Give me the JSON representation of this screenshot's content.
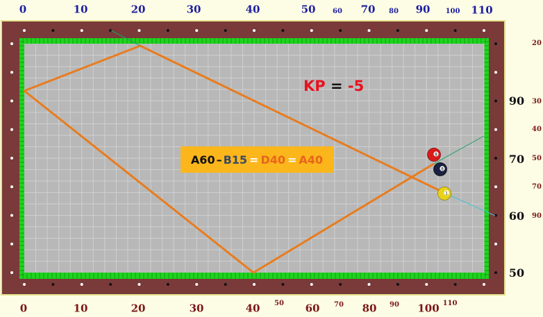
{
  "top_scale": [
    {
      "text": "0",
      "size": "big"
    },
    {
      "text": "10",
      "size": "big"
    },
    {
      "text": "20",
      "size": "big"
    },
    {
      "text": "30",
      "size": "big"
    },
    {
      "text": "40",
      "size": "big"
    },
    {
      "text": "50",
      "size": "big"
    },
    {
      "text": "60",
      "size": "small"
    },
    {
      "text": "70",
      "size": "big"
    },
    {
      "text": "80",
      "size": "small"
    },
    {
      "text": "90",
      "size": "big"
    },
    {
      "text": "100",
      "size": "small"
    },
    {
      "text": "110",
      "size": "big"
    }
  ],
  "bottom_scale": [
    {
      "text": "0",
      "size": "big"
    },
    {
      "text": "10",
      "size": "big"
    },
    {
      "text": "20",
      "size": "big"
    },
    {
      "text": "30",
      "size": "big"
    },
    {
      "text": "40",
      "size": "big"
    },
    {
      "text": "50",
      "size": "small"
    },
    {
      "text": "60",
      "size": "big"
    },
    {
      "text": "70",
      "size": "small"
    },
    {
      "text": "80",
      "size": "big"
    },
    {
      "text": "90",
      "size": "small"
    },
    {
      "text": "100",
      "size": "big"
    },
    {
      "text": "110",
      "size": "small"
    }
  ],
  "right_scale_outer": [
    "20",
    "30",
    "40",
    "50",
    "70",
    "90"
  ],
  "right_scale_inner": [
    "90",
    "70",
    "60",
    "50"
  ],
  "rail_marker": "80",
  "kp": {
    "label": "KP",
    "equals": "=",
    "value": "-5"
  },
  "formula": {
    "a": "A60",
    "dash": "–",
    "b": "B15",
    "eq1": "=",
    "d": "D40",
    "eq2": "=",
    "e": "A40"
  },
  "balls": [
    {
      "name": "red-ball",
      "color": "#d81b1b",
      "number": "8"
    },
    {
      "name": "black-ball",
      "color": "#1b2140",
      "number": "8"
    },
    {
      "name": "yellow-ball",
      "color": "#e8d21a",
      "number": "1"
    }
  ],
  "colors": {
    "rail": "#7a3a3a",
    "felt": "#b8b8b8",
    "cushion": "#1fd41f",
    "path": "#e87c1e",
    "aim_green": "#1aa060",
    "aim_cyan": "#4ac0d0",
    "formula_bg": "#fbb61b"
  }
}
